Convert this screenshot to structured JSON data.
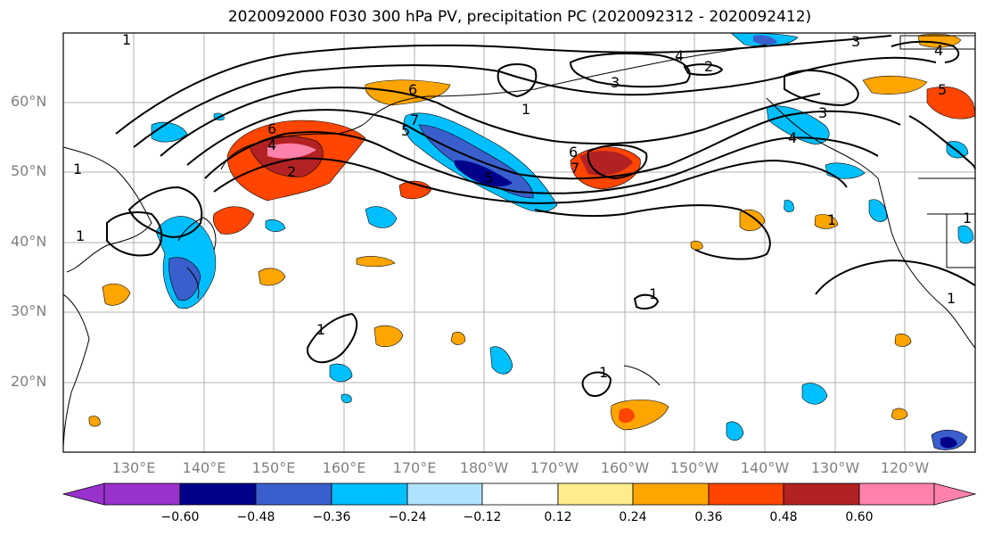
{
  "title": "2020092000 F030 300 hPa PV, precipitation PC (2020092312 - 2020092412)",
  "lat_labels": [
    "60°N",
    "50°N",
    "40°N",
    "30°N",
    "20°N"
  ],
  "lon_labels": [
    "130°E",
    "140°E",
    "150°E",
    "160°E",
    "170°E",
    "180°W",
    "170°W",
    "160°W",
    "150°W",
    "140°W",
    "130°W",
    "120°W"
  ],
  "colorbar": {
    "ticks": [
      "−0.60",
      "−0.48",
      "−0.36",
      "−0.24",
      "−0.12",
      "0.12",
      "0.24",
      "0.36",
      "0.48",
      "0.60"
    ],
    "colors": [
      "#9932cc",
      "#00008b",
      "#3a5fcd",
      "#00bfff",
      "#b0e2ff",
      "#ffffff",
      "#ffec8b",
      "#ffa500",
      "#ff4500",
      "#b22222",
      "#ff82ab"
    ]
  },
  "contour_labels": [
    "1",
    "1",
    "1",
    "1",
    "1",
    "1",
    "1",
    "1",
    "2",
    "2",
    "3",
    "3",
    "3",
    "4",
    "4",
    "4",
    "4",
    "5",
    "5",
    "6",
    "6",
    "6",
    "7",
    "7",
    "1",
    "5",
    "1"
  ],
  "map": {
    "region": "North Pacific",
    "lon_range": [
      "120°E",
      "110°W"
    ],
    "lat_range": [
      "10°N",
      "70°N"
    ]
  }
}
